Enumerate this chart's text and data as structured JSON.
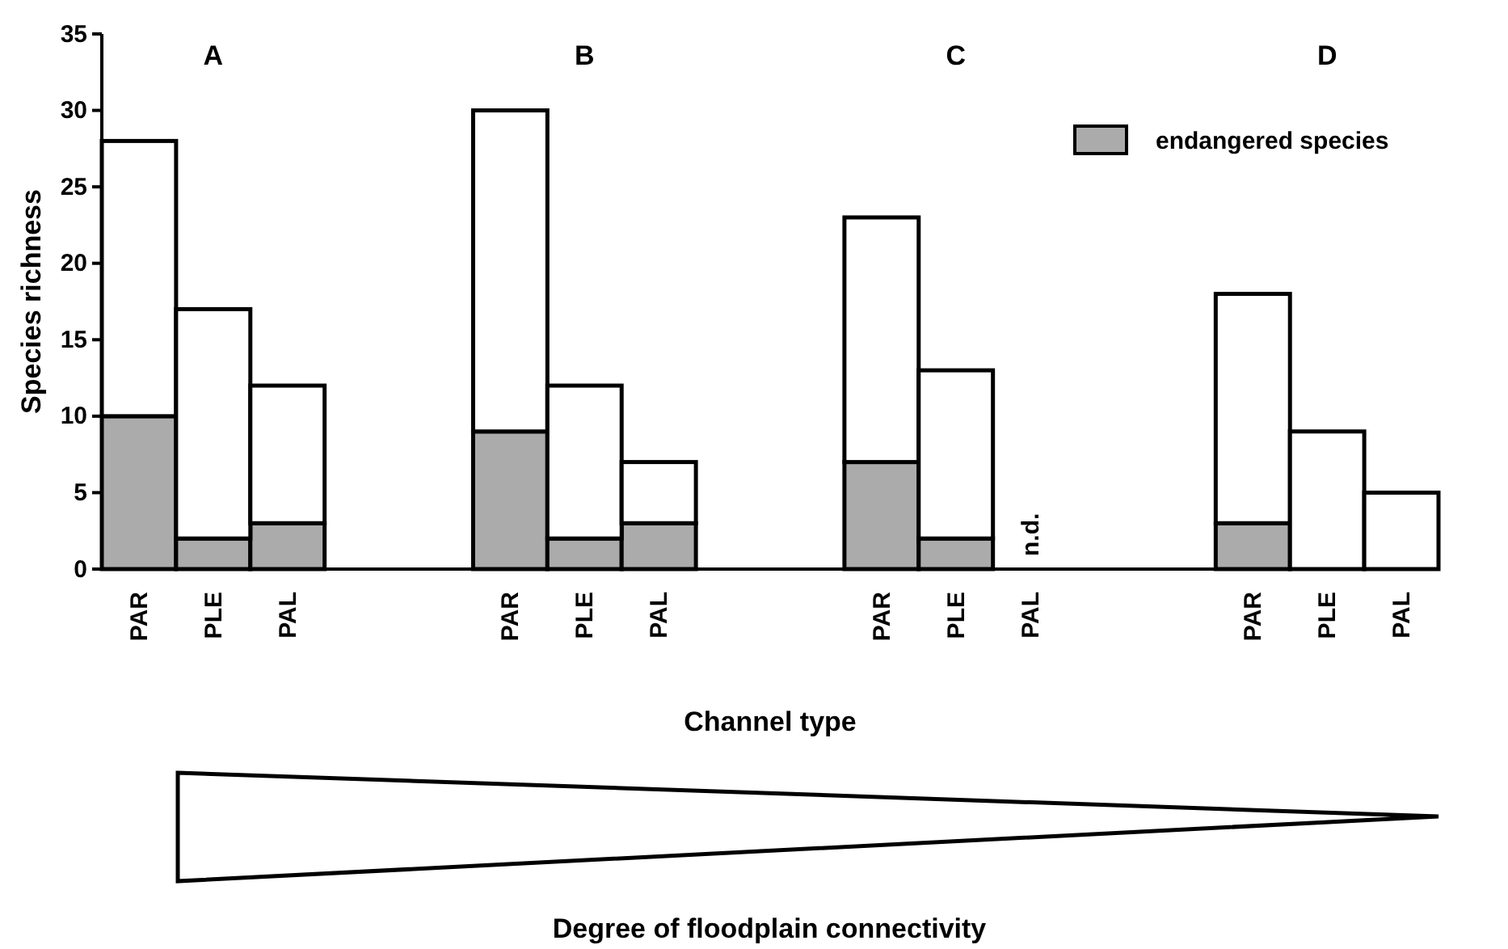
{
  "chart_data": {
    "type": "bar",
    "stacked": true,
    "ylabel": "Species richness",
    "xlabel": "Channel type",
    "categories": [
      "PAR",
      "PLE",
      "PAL",
      null,
      null,
      "PAR",
      "PLE",
      "PAL",
      null,
      null,
      "PAR",
      "PLE",
      "PAL",
      null,
      null,
      "PAR",
      "PLE",
      "PAL"
    ],
    "series": [
      {
        "name": "endangered species",
        "color": "#ababab",
        "values": [
          10,
          2,
          3,
          null,
          null,
          9,
          2,
          3,
          null,
          null,
          7,
          2,
          null,
          null,
          null,
          3,
          null,
          null
        ]
      },
      {
        "color": "#ffffff",
        "values": [
          18,
          15,
          9,
          null,
          null,
          21,
          10,
          4,
          null,
          null,
          16,
          11,
          null,
          null,
          null,
          15,
          9,
          5
        ]
      }
    ],
    "ylim": [
      0,
      35
    ],
    "yticks": [
      0,
      5,
      10,
      15,
      20,
      25,
      30,
      35
    ],
    "grid": false,
    "legend": "top right",
    "annotations": [
      "A",
      "B",
      "C",
      "D",
      "n.d.",
      "Degree of floodplain connectivity"
    ]
  }
}
